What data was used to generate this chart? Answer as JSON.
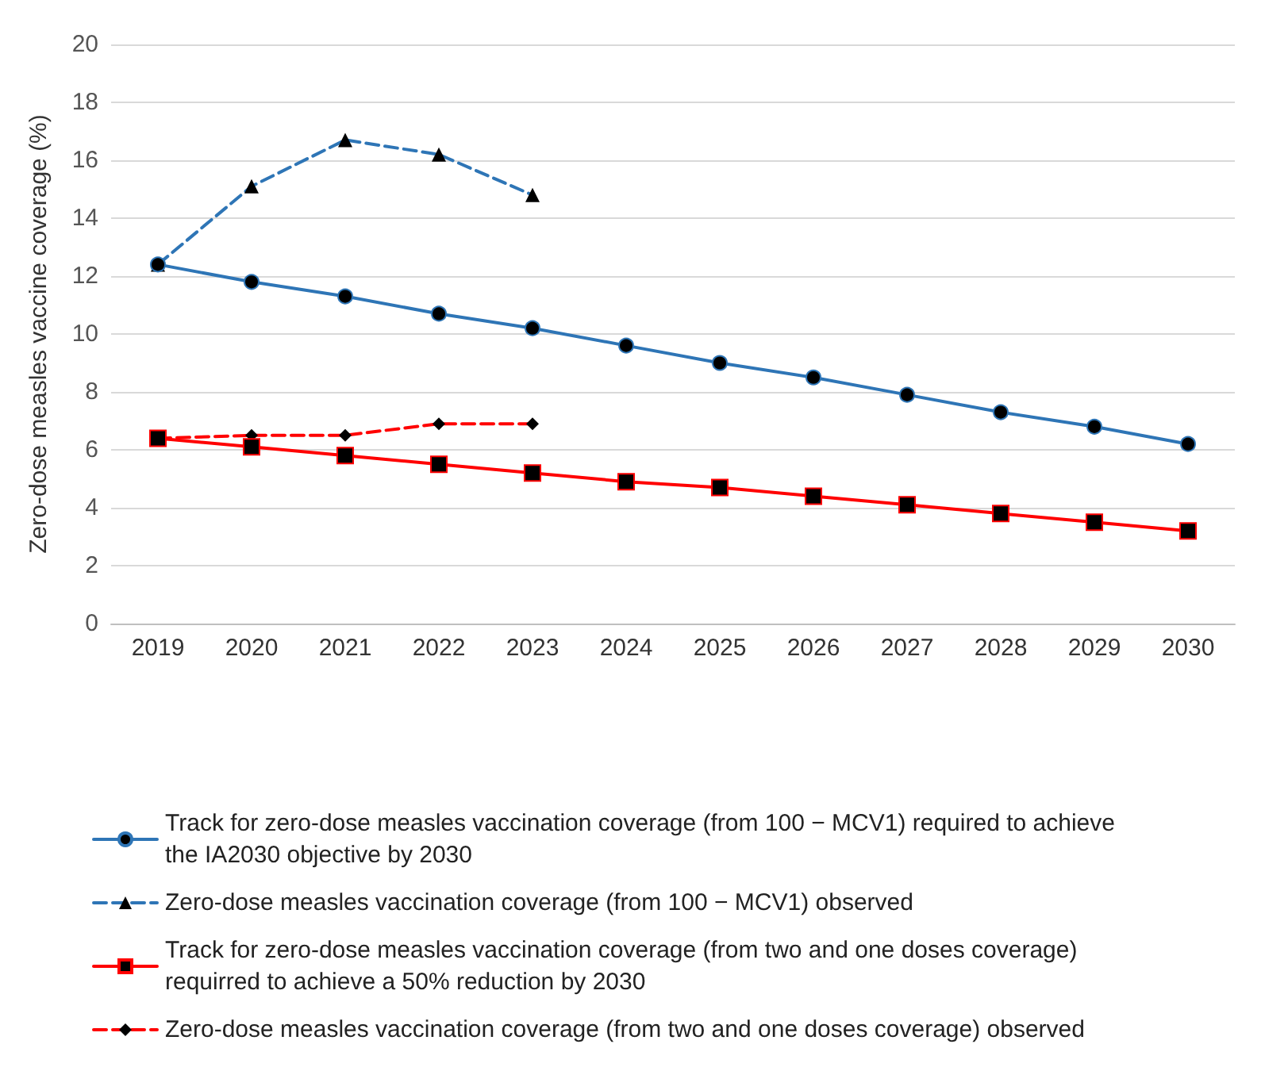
{
  "chart_data": {
    "type": "line",
    "ylabel": "Zero-dose measles vaccine coverage (%)",
    "categories": [
      "2019",
      "2020",
      "2021",
      "2022",
      "2023",
      "2024",
      "2025",
      "2026",
      "2027",
      "2028",
      "2029",
      "2030"
    ],
    "series": [
      {
        "name": "Track for zero-dose measles vaccination coverage (from 100 − MCV1) required to achieve the IA2030 objective by 2030",
        "color": "#2e75b6",
        "marker": "circle",
        "line_style": "solid",
        "values": [
          12.4,
          11.8,
          11.3,
          10.7,
          10.2,
          9.6,
          9.0,
          8.5,
          7.9,
          7.3,
          6.8,
          6.2
        ]
      },
      {
        "name": "Zero-dose measles vaccination coverage (from 100 − MCV1) observed",
        "color": "#2e75b6",
        "marker": "triangle",
        "line_style": "dashed",
        "values": [
          12.4,
          15.1,
          16.7,
          16.2,
          14.8,
          null,
          null,
          null,
          null,
          null,
          null,
          null
        ]
      },
      {
        "name": "Track for zero-dose measles vaccination coverage (from two and one doses coverage) requirred to achieve a 50% reduction by 2030",
        "color": "#ff0000",
        "marker": "square",
        "line_style": "solid",
        "values": [
          6.4,
          6.1,
          5.8,
          5.5,
          5.2,
          4.9,
          4.7,
          4.4,
          4.1,
          3.8,
          3.5,
          3.2
        ]
      },
      {
        "name": "Zero-dose measles vaccination coverage (from two and one doses coverage) observed",
        "color": "#ff0000",
        "marker": "diamond",
        "line_style": "dashed",
        "values": [
          6.4,
          6.5,
          6.5,
          6.9,
          6.9,
          null,
          null,
          null,
          null,
          null,
          null,
          null
        ]
      }
    ],
    "ylim": [
      0,
      20
    ],
    "yticks": [
      0,
      2,
      4,
      6,
      8,
      10,
      12,
      14,
      16,
      18,
      20
    ],
    "grid": "y",
    "legend": "bottom"
  }
}
